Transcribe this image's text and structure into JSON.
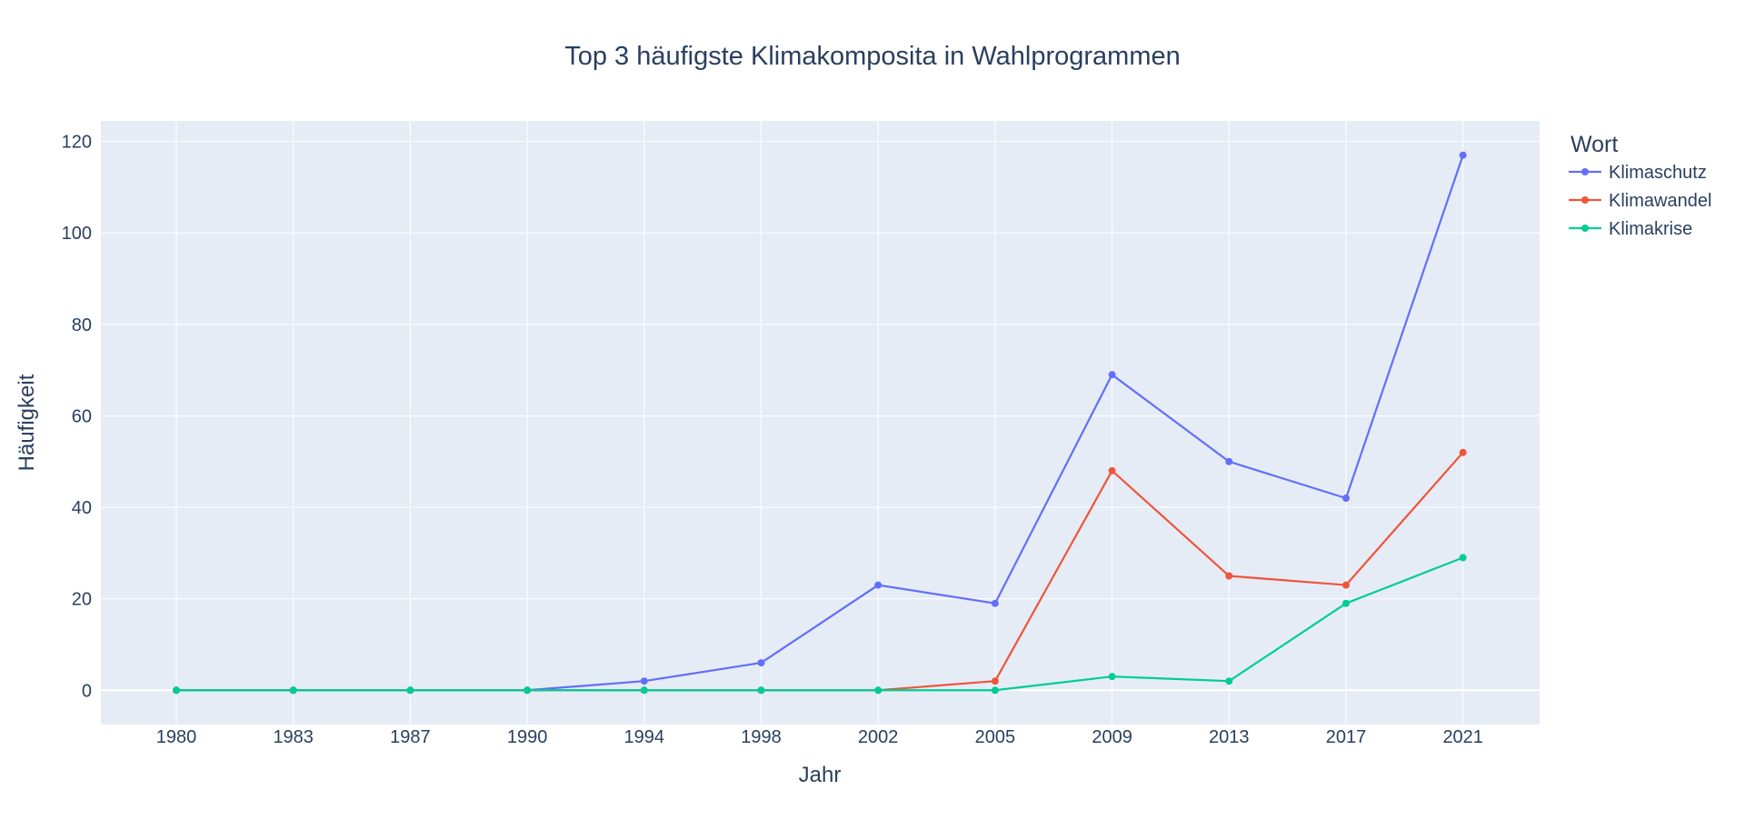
{
  "chart_data": {
    "type": "line",
    "title": "Top 3 häufigste Klimakomposita in Wahlprogrammen",
    "xlabel": "Jahr",
    "ylabel": "Häufigkeit",
    "categories": [
      "1980",
      "1983",
      "1987",
      "1990",
      "1994",
      "1998",
      "2002",
      "2005",
      "2009",
      "2013",
      "2017",
      "2021"
    ],
    "y_ticks": [
      0,
      20,
      40,
      60,
      80,
      100,
      120
    ],
    "ylim": [
      -7.5,
      124.5
    ],
    "grid": true,
    "legend": {
      "title": "Wort",
      "placement": "top-right outside"
    },
    "series": [
      {
        "name": "Klimaschutz",
        "color": "#636efa",
        "values": [
          0,
          0,
          0,
          0,
          2,
          6,
          23,
          19,
          69,
          50,
          42,
          117
        ]
      },
      {
        "name": "Klimawandel",
        "color": "#ef553b",
        "values": [
          0,
          0,
          0,
          0,
          0,
          0,
          0,
          2,
          48,
          25,
          23,
          52
        ]
      },
      {
        "name": "Klimakrise",
        "color": "#00cc96",
        "values": [
          0,
          0,
          0,
          0,
          0,
          0,
          0,
          0,
          3,
          2,
          19,
          29
        ]
      }
    ],
    "colors": {
      "plot_bg": "#e5ecf6",
      "grid": "#ffffff",
      "text": "#2a3f5f"
    }
  }
}
